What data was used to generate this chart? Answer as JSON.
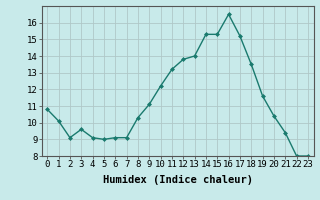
{
  "x": [
    0,
    1,
    2,
    3,
    4,
    5,
    6,
    7,
    8,
    9,
    10,
    11,
    12,
    13,
    14,
    15,
    16,
    17,
    18,
    19,
    20,
    21,
    22,
    23
  ],
  "y": [
    10.8,
    10.1,
    9.1,
    9.6,
    9.1,
    9.0,
    9.1,
    9.1,
    10.3,
    11.1,
    12.2,
    13.2,
    13.8,
    14.0,
    15.3,
    15.3,
    16.5,
    15.2,
    13.5,
    11.6,
    10.4,
    9.4,
    8.0,
    8.0
  ],
  "line_color": "#1a7a6e",
  "marker": "D",
  "marker_size": 2.0,
  "bg_color": "#c8eaea",
  "grid_color": "#b0c8c8",
  "xlabel": "Humidex (Indice chaleur)",
  "xlabel_fontsize": 7.5,
  "tick_fontsize": 6.5,
  "ylim": [
    8,
    17
  ],
  "yticks": [
    8,
    9,
    10,
    11,
    12,
    13,
    14,
    15,
    16
  ],
  "xlim": [
    -0.5,
    23.5
  ],
  "linewidth": 1.0
}
